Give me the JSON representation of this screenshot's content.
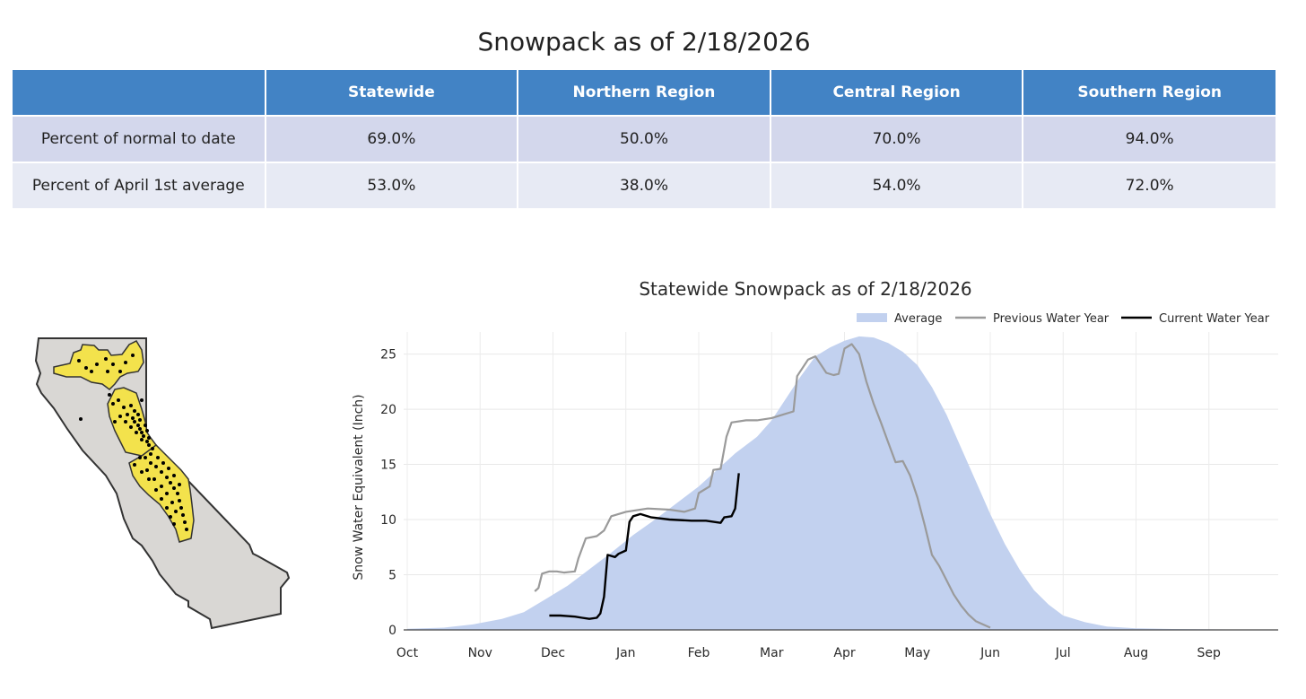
{
  "page": {
    "title": "Snowpack as of 2/18/2026"
  },
  "table": {
    "headers": [
      "",
      "Statewide",
      "Northern Region",
      "Central Region",
      "Southern Region"
    ],
    "rows": [
      {
        "label": "Percent of normal to date",
        "values": [
          "69.0%",
          "50.0%",
          "70.0%",
          "94.0%"
        ]
      },
      {
        "label": "Percent of April 1st average",
        "values": [
          "53.0%",
          "38.0%",
          "54.0%",
          "72.0%"
        ]
      }
    ]
  },
  "map": {
    "state_fill": "#d9d7d4",
    "region_fill": "#f3e24c",
    "outline": "#333333",
    "station_color": "#000000"
  },
  "chart_data": {
    "type": "line",
    "title": "Statewide Snowpack as of 2/18/2026",
    "ylabel": "Snow Water Equivalent (Inch)",
    "xlabel": "",
    "categories": [
      "Oct",
      "Nov",
      "Dec",
      "Jan",
      "Feb",
      "Mar",
      "Apr",
      "May",
      "Jun",
      "Jul",
      "Aug",
      "Sep"
    ],
    "ylim": [
      0,
      27
    ],
    "yticks": [
      0,
      5,
      10,
      15,
      20,
      25
    ],
    "grid": true,
    "legend_position": "top-right",
    "series": [
      {
        "name": "Average",
        "kind": "area",
        "color": "#c2d1ef",
        "points": [
          [
            0,
            0.1
          ],
          [
            0.5,
            0.2
          ],
          [
            0.9,
            0.5
          ],
          [
            1.3,
            1.0
          ],
          [
            1.6,
            1.6
          ],
          [
            1.9,
            2.8
          ],
          [
            2.2,
            4.0
          ],
          [
            2.5,
            5.5
          ],
          [
            2.8,
            7.0
          ],
          [
            3.1,
            8.6
          ],
          [
            3.4,
            10.0
          ],
          [
            3.7,
            11.5
          ],
          [
            4.0,
            13.0
          ],
          [
            4.3,
            14.8
          ],
          [
            4.5,
            16.0
          ],
          [
            4.8,
            17.5
          ],
          [
            5.0,
            19.0
          ],
          [
            5.2,
            21.0
          ],
          [
            5.4,
            23.0
          ],
          [
            5.6,
            24.8
          ],
          [
            5.8,
            25.6
          ],
          [
            6.0,
            26.2
          ],
          [
            6.2,
            26.6
          ],
          [
            6.4,
            26.5
          ],
          [
            6.6,
            26.0
          ],
          [
            6.8,
            25.2
          ],
          [
            7.0,
            24.0
          ],
          [
            7.2,
            22.0
          ],
          [
            7.4,
            19.5
          ],
          [
            7.6,
            16.5
          ],
          [
            7.8,
            13.5
          ],
          [
            8.0,
            10.5
          ],
          [
            8.2,
            7.8
          ],
          [
            8.4,
            5.5
          ],
          [
            8.6,
            3.6
          ],
          [
            8.8,
            2.3
          ],
          [
            9.0,
            1.3
          ],
          [
            9.3,
            0.7
          ],
          [
            9.6,
            0.3
          ],
          [
            10.0,
            0.15
          ],
          [
            10.5,
            0.08
          ],
          [
            11.0,
            0.05
          ],
          [
            11.5,
            0.03
          ],
          [
            11.95,
            0.02
          ]
        ]
      },
      {
        "name": "Previous Water Year",
        "kind": "line",
        "color": "#9a9a9a",
        "points": [
          [
            1.75,
            3.5
          ],
          [
            1.8,
            3.8
          ],
          [
            1.85,
            5.1
          ],
          [
            1.95,
            5.3
          ],
          [
            2.05,
            5.3
          ],
          [
            2.15,
            5.2
          ],
          [
            2.3,
            5.3
          ],
          [
            2.35,
            6.5
          ],
          [
            2.45,
            8.3
          ],
          [
            2.6,
            8.5
          ],
          [
            2.7,
            9.0
          ],
          [
            2.8,
            10.3
          ],
          [
            3.0,
            10.7
          ],
          [
            3.3,
            11.0
          ],
          [
            3.6,
            10.9
          ],
          [
            3.8,
            10.7
          ],
          [
            3.95,
            11.0
          ],
          [
            4.0,
            12.4
          ],
          [
            4.15,
            13.0
          ],
          [
            4.2,
            14.5
          ],
          [
            4.3,
            14.6
          ],
          [
            4.38,
            17.5
          ],
          [
            4.45,
            18.8
          ],
          [
            4.65,
            19.0
          ],
          [
            4.8,
            19.0
          ],
          [
            5.0,
            19.2
          ],
          [
            5.15,
            19.5
          ],
          [
            5.3,
            19.8
          ],
          [
            5.35,
            23.0
          ],
          [
            5.5,
            24.5
          ],
          [
            5.6,
            24.8
          ],
          [
            5.68,
            24.0
          ],
          [
            5.75,
            23.3
          ],
          [
            5.85,
            23.1
          ],
          [
            5.92,
            23.2
          ],
          [
            6.0,
            25.5
          ],
          [
            6.1,
            25.9
          ],
          [
            6.2,
            25.0
          ],
          [
            6.3,
            22.5
          ],
          [
            6.4,
            20.5
          ],
          [
            6.5,
            18.8
          ],
          [
            6.6,
            17.0
          ],
          [
            6.7,
            15.2
          ],
          [
            6.8,
            15.3
          ],
          [
            6.9,
            14.0
          ],
          [
            7.0,
            12.0
          ],
          [
            7.1,
            9.5
          ],
          [
            7.2,
            6.8
          ],
          [
            7.3,
            5.8
          ],
          [
            7.4,
            4.5
          ],
          [
            7.5,
            3.2
          ],
          [
            7.6,
            2.2
          ],
          [
            7.7,
            1.4
          ],
          [
            7.8,
            0.8
          ],
          [
            7.9,
            0.5
          ],
          [
            8.0,
            0.2
          ]
        ]
      },
      {
        "name": "Current Water Year",
        "kind": "line",
        "color": "#000000",
        "points": [
          [
            1.95,
            1.3
          ],
          [
            2.1,
            1.3
          ],
          [
            2.3,
            1.2
          ],
          [
            2.4,
            1.1
          ],
          [
            2.5,
            1.0
          ],
          [
            2.6,
            1.1
          ],
          [
            2.65,
            1.5
          ],
          [
            2.7,
            3.0
          ],
          [
            2.75,
            6.8
          ],
          [
            2.85,
            6.6
          ],
          [
            2.9,
            6.9
          ],
          [
            3.0,
            7.2
          ],
          [
            3.05,
            9.8
          ],
          [
            3.1,
            10.3
          ],
          [
            3.2,
            10.5
          ],
          [
            3.35,
            10.2
          ],
          [
            3.6,
            10.0
          ],
          [
            3.9,
            9.9
          ],
          [
            4.1,
            9.9
          ],
          [
            4.3,
            9.7
          ],
          [
            4.35,
            10.2
          ],
          [
            4.45,
            10.3
          ],
          [
            4.5,
            11.0
          ],
          [
            4.55,
            14.2
          ]
        ]
      }
    ]
  }
}
